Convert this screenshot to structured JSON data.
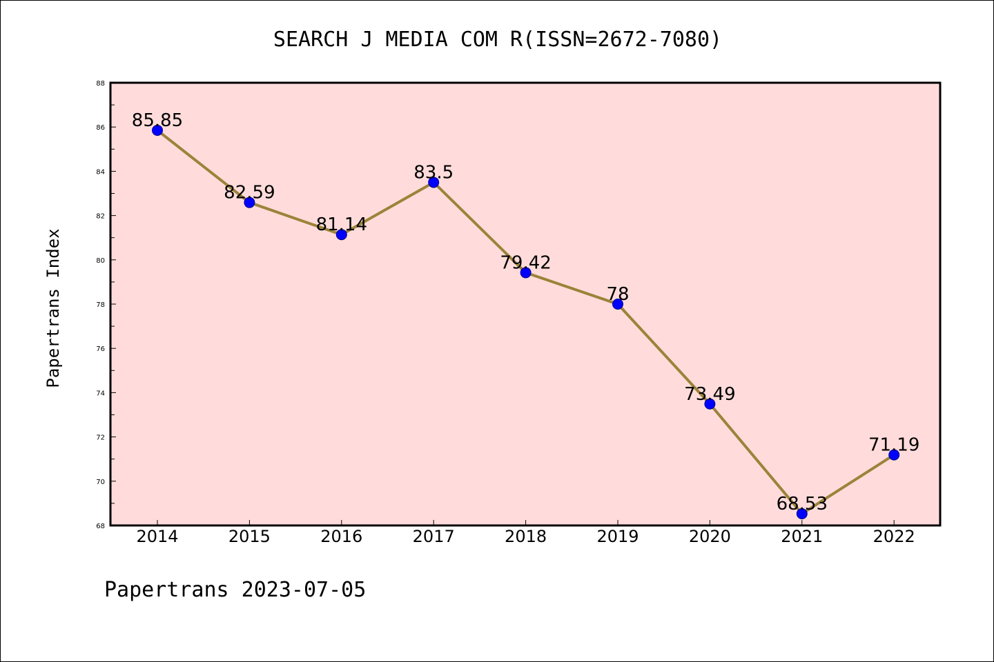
{
  "chart_data": {
    "type": "line",
    "title": "SEARCH J MEDIA COM R(ISSN=2672-7080)",
    "xlabel": "",
    "ylabel": "Papertrans Index",
    "categories": [
      "2014",
      "2015",
      "2016",
      "2017",
      "2018",
      "2019",
      "2020",
      "2021",
      "2022"
    ],
    "values": [
      85.85,
      82.59,
      81.14,
      83.5,
      79.42,
      78,
      73.49,
      68.53,
      71.19
    ],
    "data_labels": [
      "85.85",
      "82.59",
      "81.14",
      "83.5",
      "79.42",
      "78",
      "73.49",
      "68.53",
      "71.19"
    ],
    "ylim": [
      68,
      88
    ],
    "yticks": [
      "68",
      "70",
      "72",
      "74",
      "76",
      "78",
      "80",
      "82",
      "84",
      "86",
      "88"
    ],
    "grid": false,
    "colors": {
      "plot_background": "#ffdcdb",
      "line": "#9b8339",
      "marker": "#0000ff"
    }
  },
  "footer": {
    "text": "Papertrans 2023-07-05"
  }
}
